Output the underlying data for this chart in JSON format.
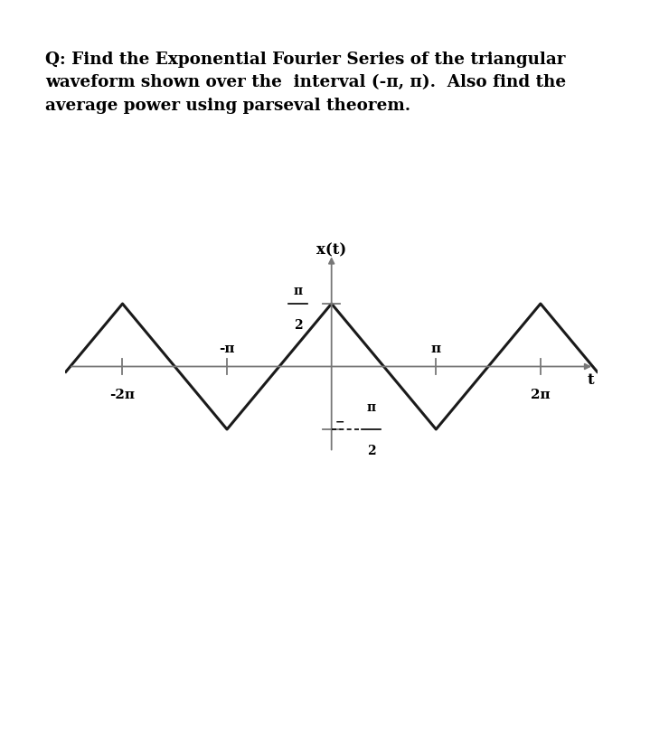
{
  "background_color": "#ffffff",
  "text_color": "#000000",
  "line_color": "#1a1a1a",
  "axis_color": "#777777",
  "pi": 3.14159265358979,
  "amplitude": 1.5707963,
  "period": 6.2831853,
  "question_line1": "Q: Find the Exponential Fourier Series of the triangular",
  "question_line2": "waveform shown over the  interval (-π, π).  Also find the",
  "question_line3": "average power using parseval theorem.",
  "ylabel": "x(t)",
  "xlabel": "t",
  "x_tick_labels": [
    "-2π",
    "-π",
    "π",
    "2π"
  ],
  "pi2_label_top": "π",
  "pi2_label_bot_num": "π",
  "frac_line": "—",
  "denom": "2",
  "minus": "-"
}
